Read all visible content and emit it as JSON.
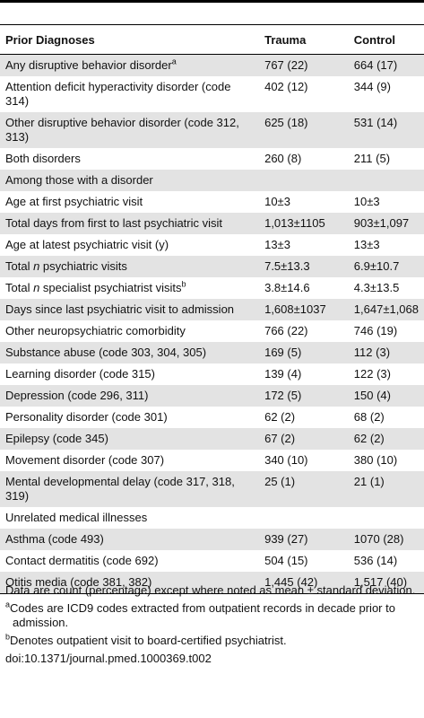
{
  "table": {
    "header": [
      "Prior Diagnoses",
      "Trauma",
      "Control"
    ],
    "rows": [
      {
        "label": "Any disruptive behavior disorder",
        "note": "a",
        "cells": [
          "767 (22)",
          "664 (17)"
        ]
      },
      {
        "label": "Attention deficit hyperactivity disorder (code 314)",
        "cells": [
          "402 (12)",
          "344 (9)"
        ]
      },
      {
        "label": "Other disruptive behavior disorder (code 312, 313)",
        "cells": [
          "625 (18)",
          "531 (14)"
        ]
      },
      {
        "label": "Both disorders",
        "cells": [
          "260 (8)",
          "211 (5)"
        ]
      },
      {
        "label": "Among those with a disorder",
        "cells": []
      },
      {
        "label": "Age at first psychiatric visit",
        "cells": [
          "10±3",
          "10±3"
        ]
      },
      {
        "label": "Total days from first to last psychiatric visit",
        "cells": [
          "1,013±1105",
          "903±1,097"
        ]
      },
      {
        "label": "Age at latest psychiatric visit (y)",
        "cells": [
          "13±3",
          "13±3"
        ]
      },
      {
        "label": [
          "Total ",
          "n",
          " psychiatric visits"
        ],
        "cells": [
          "7.5±13.3",
          "6.9±10.7"
        ]
      },
      {
        "label": [
          "Total ",
          "n",
          " specialist psychiatrist visits"
        ],
        "note": "b",
        "cells": [
          "3.8±14.6",
          "4.3±13.5"
        ]
      },
      {
        "label": "Days since last psychiatric visit to admission",
        "cells": [
          "1,608±1037",
          "1,647±1,068"
        ]
      },
      {
        "label": "Other neuropsychiatric comorbidity",
        "cells": [
          "766 (22)",
          "746 (19)"
        ]
      },
      {
        "label": "Substance abuse (code 303, 304, 305)",
        "cells": [
          "169 (5)",
          "112 (3)"
        ]
      },
      {
        "label": "Learning disorder (code 315)",
        "cells": [
          "139 (4)",
          "122 (3)"
        ]
      },
      {
        "label": "Depression (code 296, 311)",
        "cells": [
          "172 (5)",
          "150 (4)"
        ]
      },
      {
        "label": "Personality disorder (code 301)",
        "cells": [
          "62 (2)",
          "68 (2)"
        ]
      },
      {
        "label": "Epilepsy (code 345)",
        "cells": [
          "67 (2)",
          "62 (2)"
        ]
      },
      {
        "label": "Movement disorder (code 307)",
        "cells": [
          "340 (10)",
          "380 (10)"
        ]
      },
      {
        "label": "Mental developmental delay (code 317, 318, 319)",
        "cells": [
          "25 (1)",
          "21 (1)"
        ]
      },
      {
        "label": "Unrelated medical illnesses",
        "cells": []
      },
      {
        "label": "Asthma (code 493)",
        "cells": [
          "939 (27)",
          "1070 (28)"
        ]
      },
      {
        "label": "Contact dermatitis (code 692)",
        "cells": [
          "504 (15)",
          "536 (14)"
        ]
      },
      {
        "label": "Otitis media (code 381, 382)",
        "cells": [
          "1,445 (42)",
          "1,517 (40)"
        ]
      }
    ]
  },
  "footnotes": [
    {
      "text": "Data are count (percentage) except where noted as mean ± standard deviation."
    },
    {
      "mark": "a",
      "text": "Codes are ICD9 codes extracted from outpatient records in decade prior to admission."
    },
    {
      "mark": "b",
      "text": "Denotes outpatient visit to board-certified psychiatrist."
    },
    {
      "text": "doi:10.1371/journal.pmed.1000369.t002"
    }
  ]
}
